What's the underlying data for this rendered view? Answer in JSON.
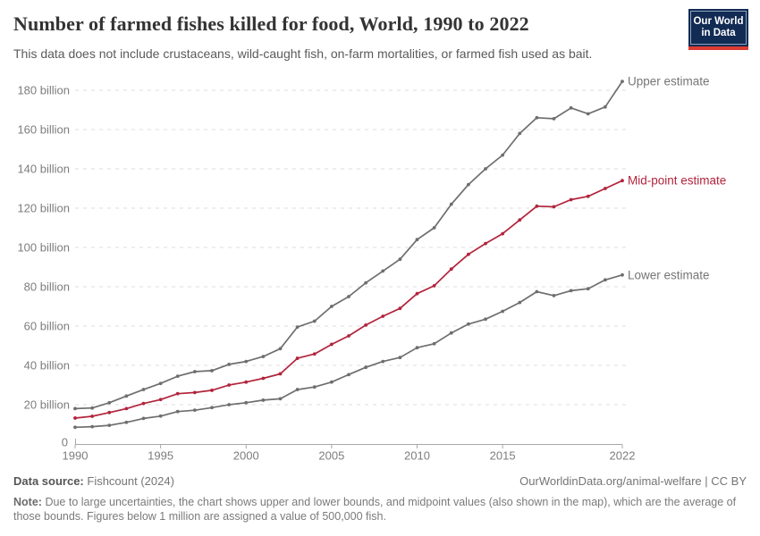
{
  "header": {
    "title": "Number of farmed fishes killed for food, World, 1990 to 2022",
    "subtitle": "This data does not include crustaceans, wild-caught fish, on-farm mortalities, or farmed fish used as bait.",
    "logo": {
      "line1": "Our World",
      "line2": "in Data",
      "bg_color": "#122b54",
      "bar_color": "#dc3b32"
    }
  },
  "chart_data": {
    "type": "line",
    "title": "Number of farmed fishes killed for food, World, 1990 to 2022",
    "x_label": "",
    "y_label": "",
    "grid": "horizontal-dashed",
    "x": [
      1990,
      1991,
      1992,
      1993,
      1994,
      1995,
      1996,
      1997,
      1998,
      1999,
      2000,
      2001,
      2002,
      2003,
      2004,
      2005,
      2006,
      2007,
      2008,
      2009,
      2010,
      2011,
      2012,
      2013,
      2014,
      2015,
      2016,
      2017,
      2018,
      2019,
      2020,
      2021,
      2022
    ],
    "series": [
      {
        "name": "Upper estimate",
        "color": "#6e6e6e",
        "label_color": "#757575",
        "values": [
          18,
          18.3,
          21,
          24.4,
          27.7,
          30.8,
          34.5,
          36.8,
          37.3,
          40.5,
          42,
          44.5,
          48.5,
          59.5,
          62.5,
          70,
          75,
          82,
          88,
          94,
          104,
          110,
          122,
          132,
          140,
          147,
          158,
          166,
          165.5,
          171,
          168,
          171.5,
          184.5
        ]
      },
      {
        "name": "Mid-point estimate",
        "color": "#b2243c",
        "label_color": "#b2243c",
        "values": [
          13.2,
          14.1,
          16,
          18,
          20.6,
          22.6,
          25.6,
          26.2,
          27.3,
          30,
          31.5,
          33.4,
          35.7,
          43.6,
          45.8,
          50.7,
          55,
          60.5,
          65,
          69,
          76.5,
          80.5,
          89,
          96.5,
          102,
          107,
          114,
          121,
          120.7,
          124.3,
          126,
          130,
          134
        ]
      },
      {
        "name": "Lower estimate",
        "color": "#6e6e6e",
        "label_color": "#757575",
        "values": [
          8.5,
          8.8,
          9.5,
          11,
          13,
          14.2,
          16.5,
          17.2,
          18.5,
          20,
          21,
          22.3,
          23,
          27.7,
          29,
          31.5,
          35.3,
          39,
          42,
          44,
          49,
          51,
          56.5,
          61,
          63.5,
          67.5,
          72,
          77.5,
          75.5,
          78,
          79,
          83.5,
          86
        ]
      }
    ],
    "unit": "billion fish",
    "ylim": [
      0,
      190
    ],
    "xlim": [
      1990,
      2022
    ],
    "y_ticks": [
      {
        "value": 20,
        "label": "20 billion"
      },
      {
        "value": 40,
        "label": "40 billion"
      },
      {
        "value": 60,
        "label": "60 billion"
      },
      {
        "value": 80,
        "label": "80 billion"
      },
      {
        "value": 100,
        "label": "100 billion"
      },
      {
        "value": 120,
        "label": "120 billion"
      },
      {
        "value": 140,
        "label": "140 billion"
      },
      {
        "value": 160,
        "label": "160 billion"
      },
      {
        "value": 180,
        "label": "180 billion"
      }
    ],
    "y_zero_label": "0",
    "x_ticks": [
      1990,
      1995,
      2000,
      2005,
      2010,
      2015,
      2022
    ],
    "legend_position": "line-end-labels"
  },
  "footer": {
    "data_source_label": "Data source:",
    "data_source_value": "Fishcount (2024)",
    "attribution": "OurWorldinData.org/animal-welfare | CC BY",
    "note_label": "Note:",
    "note_text": "Due to large uncertainties, the chart shows upper and lower bounds, and midpoint values (also shown in the map), which are the average of those bounds. Figures below 1 million are assigned a value of 500,000 fish."
  },
  "colors": {
    "accent_red": "#b2243c",
    "line_gray": "#6e6e6e",
    "gridline": "#dedede",
    "axis": "#a8a8a8",
    "tick_text": "#7d7d7d"
  }
}
